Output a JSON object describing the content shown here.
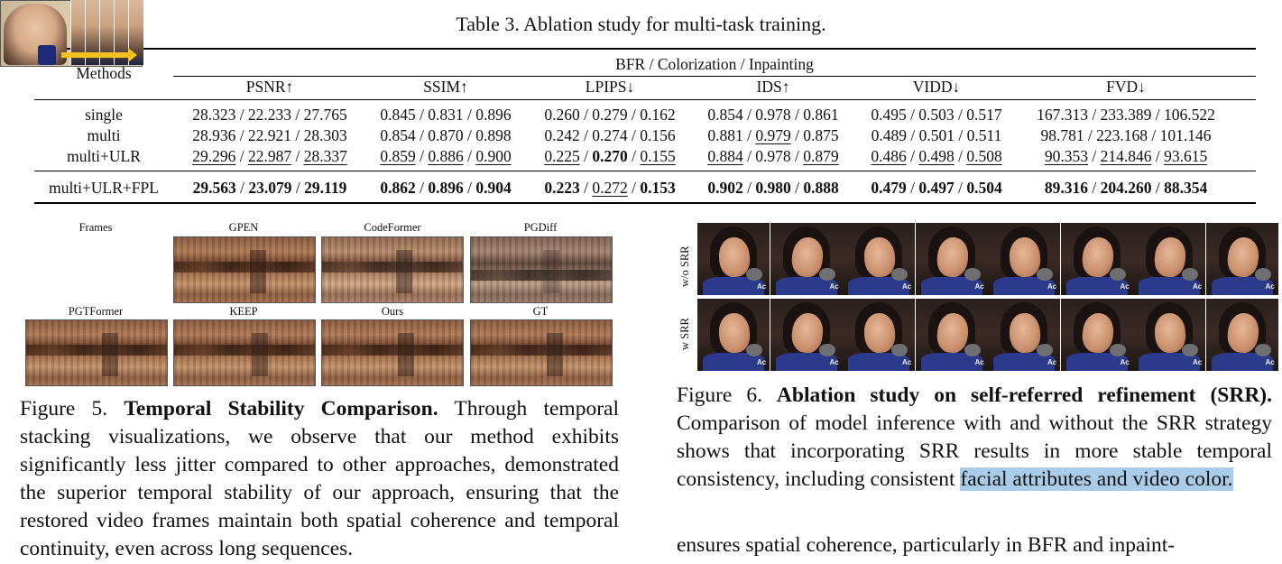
{
  "table": {
    "caption": "Table 3. Ablation study for multi-task training.",
    "group_header": "BFR / Colorization / Inpainting",
    "methods_header": "Methods",
    "columns": [
      "PSNR↑",
      "SSIM↑",
      "LPIPS↓",
      "IDS↑",
      "VIDD↓",
      "FVD↓"
    ],
    "rows": [
      {
        "method": "single",
        "cells": [
          [
            "28.323 / 22.233 / 27.765"
          ],
          [
            "0.845 / 0.831 / 0.896"
          ],
          [
            "0.260 / 0.279 / 0.162"
          ],
          [
            "0.854 / 0.978 / 0.861"
          ],
          [
            "0.495 / 0.503 / 0.517"
          ],
          [
            "167.313 / 233.389 / 106.522"
          ]
        ]
      },
      {
        "method": "multi",
        "cells": [
          [
            "28.936 / 22.921 / 28.303"
          ],
          [
            "0.854 / 0.870 / 0.898"
          ],
          [
            "0.242 / 0.274 / 0.156"
          ],
          [
            "0.881 / <u>0.979</u> / 0.875"
          ],
          [
            "0.489 / 0.501 / 0.511"
          ],
          [
            "98.781 / 223.168 / 101.146"
          ]
        ]
      },
      {
        "method": "multi+ULR",
        "cells": [
          [
            "<u>29.296</u> / <u>22.987</u> / <u>28.337</u>"
          ],
          [
            "<u>0.859</u> / <u>0.886</u> / <u>0.900</u>"
          ],
          [
            "<u>0.225</u> / <b>0.270</b> / <u>0.155</u>"
          ],
          [
            "<u>0.884</u> / 0.978 / <u>0.879</u>"
          ],
          [
            "<u>0.486</u> / <u>0.498</u> / <u>0.508</u>"
          ],
          [
            "<u>90.353</u> / <u>214.846</u> / <u>93.615</u>"
          ]
        ]
      },
      {
        "method": "multi+ULR+FPL",
        "cells": [
          [
            "<b>29.563</b> / <b>23.079</b> / <b>29.119</b>"
          ],
          [
            "<b>0.862</b> / <b>0.896</b> / <b>0.904</b>"
          ],
          [
            "<b>0.223</b> / <u>0.272</u> / <b>0.153</b>"
          ],
          [
            "<b>0.902</b> / <b>0.980</b> / <b>0.888</b>"
          ],
          [
            "<b>0.479</b> / <b>0.497</b> / <b>0.504</b>"
          ],
          [
            "<b>89.316</b> / <b>204.260</b> / <b>88.354</b>"
          ]
        ]
      }
    ]
  },
  "figure5": {
    "labels": [
      "Frames",
      "GPEN",
      "CodeFormer",
      "PGDiff",
      "PGTFormer",
      "KEEP",
      "Ours",
      "GT"
    ],
    "caption_prefix": "Figure 5.",
    "caption_title": "Temporal Stability Comparison.",
    "caption_body": "Through temporal stacking visualizations, we observe that our method exhibits significantly less jitter compared to other approaches, demonstrated the superior temporal stability of our approach, ensuring that the restored video frames maintain both spatial coherence and temporal continuity, even across long sequences."
  },
  "figure6": {
    "row_labels": [
      "w/o SRR",
      "w SRR"
    ],
    "frame_tag": "Ac",
    "caption_prefix": "Figure 6.",
    "caption_title": "Ablation study on self-referred refinement (SRR).",
    "caption_body": "Comparison of model inference with and without the SRR strategy shows that incorporating SRR results in more stable temporal consistency, including consistent",
    "caption_highlight": "facial attributes and video color."
  },
  "body_text": "ensures spatial coherence, particularly in BFR and inpaint-"
}
